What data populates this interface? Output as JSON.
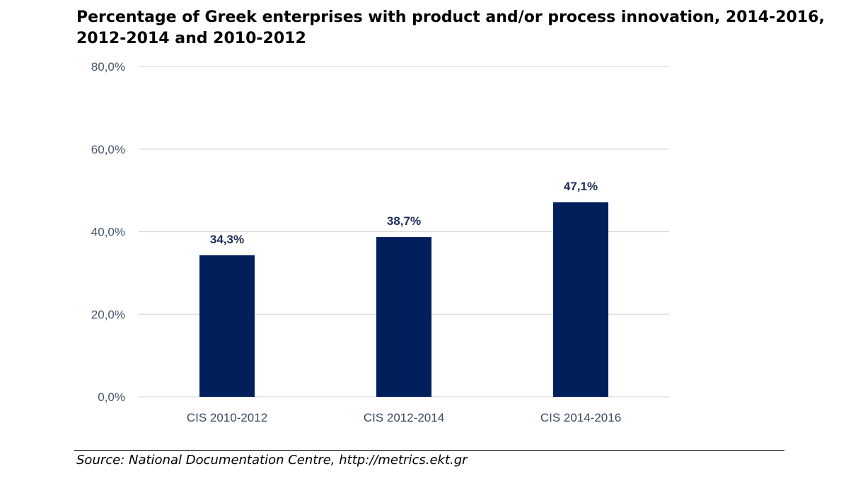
{
  "chart_data": {
    "type": "bar",
    "title": "Percentage of Greek enterprises with product and/or process innovation, 2014-2016, 2012-2014 and 2010-2012",
    "categories": [
      "CIS 2010-2012",
      "CIS 2012-2014",
      "CIS 2014-2016"
    ],
    "values": [
      34.3,
      38.7,
      47.1
    ],
    "value_labels": [
      "34,3%",
      "38,7%",
      "47,1%"
    ],
    "ylim": [
      0,
      80
    ],
    "yticks": [
      0,
      20,
      40,
      60,
      80
    ],
    "ytick_labels": [
      "0,0%",
      "20,0%",
      "40,0%",
      "60,0%",
      "80,0%"
    ],
    "xlabel": "",
    "ylabel": "",
    "grid": true,
    "legend": "none",
    "colors": {
      "bar": "#001f5b",
      "grid": "#d9d9d9"
    }
  },
  "footer": {
    "source": "Source: National Documentation Centre, http://metrics.ekt.gr"
  }
}
